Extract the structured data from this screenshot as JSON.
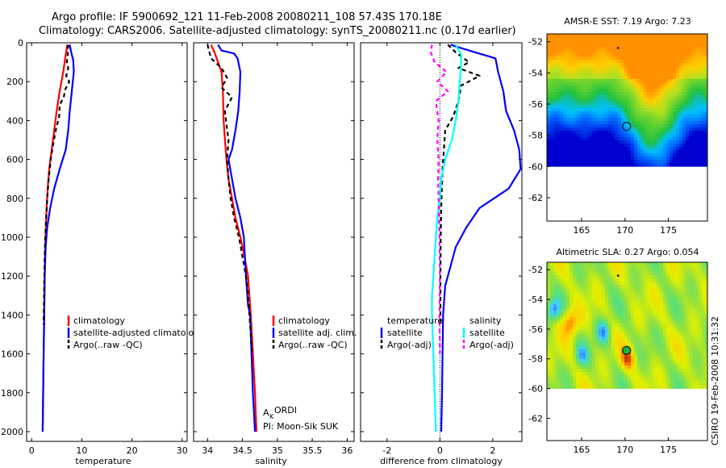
{
  "header": {
    "line1": "Argo profile: IF 5900692_121 11-Feb-2008 20080211_108 57.43S 170.18E",
    "line2": "Climatology: CARS2006. Satellite-adjusted climatology: synTS_20080211.nc (0.17d earlier)"
  },
  "stamp": "CSIRO 19-Feb-2008 10:31:32",
  "chart_data": [
    {
      "type": "line",
      "id": "temperature",
      "xlabel": "temperature",
      "xlim": [
        -1,
        31
      ],
      "ylim": [
        2050,
        0
      ],
      "xticks": [
        0,
        10,
        20,
        30
      ],
      "yticks": [
        0,
        200,
        400,
        600,
        800,
        1000,
        1200,
        1400,
        1600,
        1800,
        2000
      ],
      "legend": {
        "placement": "lower-right",
        "entries": [
          "climatology",
          "satellite-adjusted climatology",
          "Argo(..raw -QC)"
        ]
      },
      "series": [
        {
          "name": "climatology",
          "color": "#ff0000",
          "dash": "solid",
          "points": [
            [
              7.1,
              10
            ],
            [
              6.8,
              60
            ],
            [
              6.3,
              150
            ],
            [
              5.6,
              250
            ],
            [
              5.0,
              350
            ],
            [
              4.5,
              450
            ],
            [
              4.0,
              550
            ],
            [
              3.5,
              650
            ],
            [
              3.2,
              750
            ],
            [
              2.9,
              900
            ],
            [
              2.7,
              1050
            ],
            [
              2.6,
              1200
            ],
            [
              2.5,
              1400
            ],
            [
              2.4,
              1600
            ],
            [
              2.3,
              1800
            ],
            [
              2.2,
              2000
            ]
          ]
        },
        {
          "name": "satellite-adjusted climatology",
          "color": "#0000ff",
          "dash": "solid",
          "points": [
            [
              7.6,
              10
            ],
            [
              7.9,
              50
            ],
            [
              8.3,
              90
            ],
            [
              8.4,
              150
            ],
            [
              8.0,
              250
            ],
            [
              7.6,
              350
            ],
            [
              7.3,
              450
            ],
            [
              6.8,
              550
            ],
            [
              5.6,
              650
            ],
            [
              4.5,
              750
            ],
            [
              3.7,
              850
            ],
            [
              3.1,
              950
            ],
            [
              2.8,
              1050
            ],
            [
              2.6,
              1200
            ],
            [
              2.5,
              1400
            ],
            [
              2.4,
              1600
            ],
            [
              2.3,
              1800
            ],
            [
              2.2,
              2000
            ]
          ]
        },
        {
          "name": "Argo(..raw -QC)",
          "color": "#000000",
          "dash": "dashed",
          "points": [
            [
              7.3,
              10
            ],
            [
              7.2,
              60
            ],
            [
              7.0,
              100
            ],
            [
              7.3,
              130
            ],
            [
              6.9,
              170
            ],
            [
              7.5,
              200
            ],
            [
              6.7,
              240
            ],
            [
              6.4,
              280
            ],
            [
              5.6,
              320
            ],
            [
              5.5,
              380
            ],
            [
              4.8,
              450
            ],
            [
              4.3,
              520
            ],
            [
              3.8,
              600
            ],
            [
              3.4,
              700
            ],
            [
              3.1,
              800
            ],
            [
              2.8,
              950
            ],
            [
              2.6,
              1100
            ],
            [
              2.5,
              1250
            ],
            [
              2.4,
              1450
            ]
          ]
        }
      ]
    },
    {
      "type": "line",
      "id": "salinity",
      "xlabel": "salinity",
      "xlim": [
        33.8,
        36.1
      ],
      "ylim": [
        2050,
        0
      ],
      "xticks": [
        34,
        34.5,
        35,
        35.5,
        36
      ],
      "legend": {
        "placement": "lower-right",
        "entries": [
          "climatology",
          "satellite adj. clim.",
          "Argo(..raw -QC)"
        ]
      },
      "annotation": [
        "A",
        "K",
        "ORDI",
        "PI: Moon-Sik SUK"
      ],
      "series": [
        {
          "name": "climatology",
          "color": "#ff0000",
          "dash": "solid",
          "points": [
            [
              34.05,
              10
            ],
            [
              34.1,
              50
            ],
            [
              34.15,
              100
            ],
            [
              34.2,
              150
            ],
            [
              34.22,
              250
            ],
            [
              34.23,
              400
            ],
            [
              34.25,
              500
            ],
            [
              34.27,
              600
            ],
            [
              34.3,
              700
            ],
            [
              34.35,
              800
            ],
            [
              34.4,
              900
            ],
            [
              34.47,
              1000
            ],
            [
              34.53,
              1100
            ],
            [
              34.58,
              1200
            ],
            [
              34.62,
              1400
            ],
            [
              34.65,
              1600
            ],
            [
              34.68,
              1800
            ],
            [
              34.7,
              2000
            ]
          ]
        },
        {
          "name": "satellite adj. clim.",
          "color": "#0000ff",
          "dash": "solid",
          "points": [
            [
              34.15,
              10
            ],
            [
              34.2,
              40
            ],
            [
              34.38,
              55
            ],
            [
              34.43,
              80
            ],
            [
              34.47,
              150
            ],
            [
              34.46,
              250
            ],
            [
              34.44,
              350
            ],
            [
              34.4,
              450
            ],
            [
              34.35,
              550
            ],
            [
              34.3,
              600
            ],
            [
              34.35,
              700
            ],
            [
              34.4,
              800
            ],
            [
              34.47,
              900
            ],
            [
              34.52,
              1000
            ],
            [
              34.55,
              1200
            ],
            [
              34.58,
              1350
            ],
            [
              34.61,
              1400
            ],
            [
              34.63,
              1600
            ],
            [
              34.65,
              1800
            ],
            [
              34.68,
              2000
            ]
          ]
        },
        {
          "name": "Argo(..raw -QC)",
          "color": "#000000",
          "dash": "dashed",
          "points": [
            [
              34.0,
              10
            ],
            [
              34.02,
              40
            ],
            [
              34.05,
              80
            ],
            [
              34.2,
              130
            ],
            [
              34.28,
              180
            ],
            [
              34.2,
              230
            ],
            [
              34.35,
              280
            ],
            [
              34.25,
              350
            ],
            [
              34.27,
              420
            ],
            [
              34.3,
              500
            ],
            [
              34.28,
              600
            ],
            [
              34.3,
              700
            ],
            [
              34.33,
              800
            ],
            [
              34.38,
              900
            ],
            [
              34.45,
              1000
            ],
            [
              34.5,
              1100
            ],
            [
              34.55,
              1200
            ],
            [
              34.58,
              1300
            ],
            [
              34.6,
              1400
            ],
            [
              34.62,
              1500
            ],
            [
              34.64,
              1600
            ]
          ]
        }
      ]
    },
    {
      "type": "line",
      "id": "difference",
      "xlabel": "difference from climatology",
      "xlim": [
        -3,
        3.1
      ],
      "ylim": [
        2050,
        0
      ],
      "xticks": [
        -2,
        0,
        2
      ],
      "legend": {
        "placement": "lower-center",
        "groups": [
          {
            "title": "temperature",
            "entries": [
              "satellite",
              "Argo(-adj)"
            ]
          },
          {
            "title": "salinity",
            "entries": [
              "satellite",
              "Argo(-adj)"
            ]
          }
        ]
      },
      "zero_line": true,
      "series": [
        {
          "name": "satellite",
          "group": "temperature",
          "color": "#0000ff",
          "dash": "solid",
          "points": [
            [
              0.4,
              10
            ],
            [
              1.1,
              40
            ],
            [
              2.1,
              80
            ],
            [
              2.2,
              150
            ],
            [
              2.4,
              250
            ],
            [
              2.5,
              350
            ],
            [
              2.8,
              450
            ],
            [
              3.0,
              550
            ],
            [
              3.05,
              650
            ],
            [
              2.6,
              750
            ],
            [
              1.5,
              850
            ],
            [
              1.0,
              950
            ],
            [
              0.6,
              1050
            ],
            [
              0.4,
              1150
            ],
            [
              0.2,
              1250
            ],
            [
              0.12,
              1400
            ],
            [
              0.1,
              1600
            ],
            [
              0.08,
              1800
            ],
            [
              0.05,
              2000
            ]
          ]
        },
        {
          "name": "Argo(-adj)",
          "group": "temperature",
          "color": "#000000",
          "dash": "dashed",
          "points": [
            [
              0.3,
              10
            ],
            [
              0.6,
              50
            ],
            [
              1.1,
              100
            ],
            [
              0.7,
              130
            ],
            [
              1.5,
              170
            ],
            [
              0.8,
              220
            ],
            [
              0.7,
              300
            ],
            [
              0.5,
              380
            ],
            [
              0.2,
              450
            ],
            [
              0.15,
              550
            ],
            [
              0.1,
              650
            ],
            [
              0.06,
              800
            ],
            [
              0.03,
              1000
            ],
            [
              0.02,
              1200
            ],
            [
              0.02,
              1450
            ]
          ]
        },
        {
          "name": "satellite",
          "group": "salinity",
          "color": "#00ffff",
          "dash": "solid",
          "points": [
            [
              0.6,
              10
            ],
            [
              0.8,
              60
            ],
            [
              0.8,
              120
            ],
            [
              0.75,
              200
            ],
            [
              0.7,
              300
            ],
            [
              0.6,
              400
            ],
            [
              0.45,
              500
            ],
            [
              0.2,
              600
            ],
            [
              0.05,
              700
            ],
            [
              0.0,
              800
            ],
            [
              -0.1,
              900
            ],
            [
              -0.15,
              1000
            ],
            [
              -0.2,
              1100
            ],
            [
              -0.25,
              1200
            ],
            [
              -0.3,
              1300
            ],
            [
              -0.3,
              1400
            ],
            [
              -0.25,
              1600
            ],
            [
              -0.2,
              1800
            ],
            [
              -0.15,
              2000
            ]
          ]
        },
        {
          "name": "Argo(-adj)",
          "group": "salinity",
          "color": "#ff00ff",
          "dash": "dashed",
          "points": [
            [
              -0.3,
              10
            ],
            [
              -0.35,
              50
            ],
            [
              -0.2,
              100
            ],
            [
              0.25,
              150
            ],
            [
              -0.1,
              200
            ],
            [
              0.3,
              250
            ],
            [
              -0.15,
              300
            ],
            [
              -0.05,
              400
            ],
            [
              -0.1,
              500
            ],
            [
              -0.05,
              600
            ],
            [
              -0.07,
              700
            ],
            [
              -0.05,
              800
            ],
            [
              -0.02,
              1000
            ],
            [
              0.0,
              1200
            ],
            [
              -0.02,
              1400
            ],
            [
              0.0,
              1600
            ]
          ]
        }
      ]
    },
    {
      "type": "heatmap",
      "id": "sst-map",
      "title": "AMSR-E SST: 7.19 Argo: 7.23",
      "xlim": [
        161,
        179.5
      ],
      "ylim": [
        -63.5,
        -51.5
      ],
      "xticks": [
        165,
        170,
        175
      ],
      "yticks": [
        -52,
        -54,
        -56,
        -58,
        -60,
        -62
      ],
      "data_extent": {
        "lat_min": -60,
        "lat_max": -51.5
      },
      "argo_position": {
        "lon": 170.18,
        "lat": -57.43
      },
      "palette": [
        "#0000d0",
        "#0060ff",
        "#00c0ff",
        "#20c040",
        "#60d030",
        "#b0e020",
        "#ffd000",
        "#ff9000"
      ]
    },
    {
      "type": "heatmap",
      "id": "sla-map",
      "title": "Altimetric SLA: 0.27 Argo: 0.054",
      "xlim": [
        161,
        179.5
      ],
      "ylim": [
        -63.5,
        -51.5
      ],
      "xticks": [
        165,
        170,
        175
      ],
      "yticks": [
        -52,
        -54,
        -56,
        -58,
        -60,
        -62
      ],
      "data_extent": {
        "lat_min": -60,
        "lat_max": -51.5
      },
      "argo_position": {
        "lon": 170.18,
        "lat": -57.43
      },
      "palette": [
        "#3070ff",
        "#40d0ff",
        "#50e080",
        "#90e040",
        "#e0f000",
        "#ffd000",
        "#ff8000",
        "#c03000"
      ]
    }
  ]
}
